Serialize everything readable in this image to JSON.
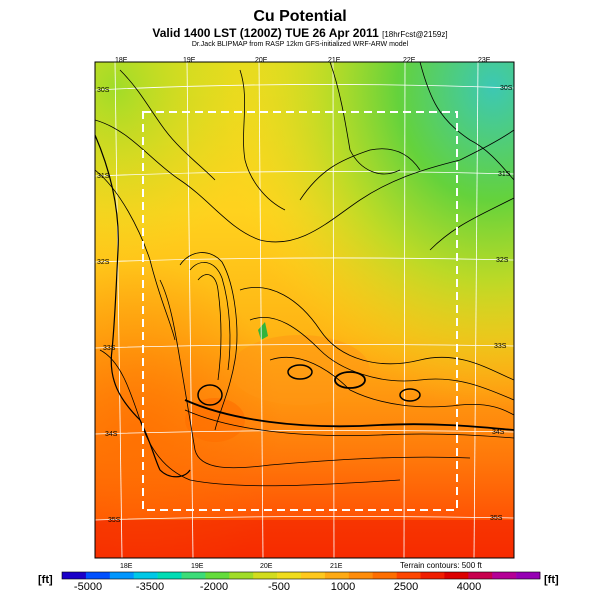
{
  "header": {
    "title": "Cu Potential",
    "subtitle_main": "Valid 1400 LST (1200Z) TUE 26 Apr 2011",
    "subtitle_small": "[18hrFcst@2159z]",
    "credit": "Dr.Jack BLIPMAP from RASP 12km GFS-initialized WRF-ARW model"
  },
  "map": {
    "lon_labels_top": [
      "18E",
      "19E",
      "20E",
      "21E",
      "22E",
      "23E"
    ],
    "lon_labels_bottom": [
      "18E",
      "19E",
      "20E",
      "21E"
    ],
    "lat_labels_left": [
      "30S",
      "31S",
      "32S",
      "33S",
      "34S",
      "35S"
    ],
    "lat_labels_right": [
      "30S",
      "31S",
      "32S",
      "33S",
      "34S",
      "35S"
    ],
    "terrain_note": "Terrain contours: 500 ft"
  },
  "colorbar": {
    "unit": "[ft]",
    "tick_labels": [
      "-5000",
      "-3500",
      "-2000",
      "-500",
      "1000",
      "2500",
      "4000"
    ],
    "colors": [
      "#1a00c8",
      "#0050ff",
      "#0096ff",
      "#00c8e6",
      "#00dcb4",
      "#3cdc78",
      "#64dc3c",
      "#a0dc28",
      "#d2dc1e",
      "#f0dc1e",
      "#ffc81e",
      "#ffaa14",
      "#ff8c0a",
      "#ff6e00",
      "#ff4600",
      "#f01e00",
      "#dc0000",
      "#c8004e",
      "#b40096",
      "#9600b4"
    ]
  }
}
